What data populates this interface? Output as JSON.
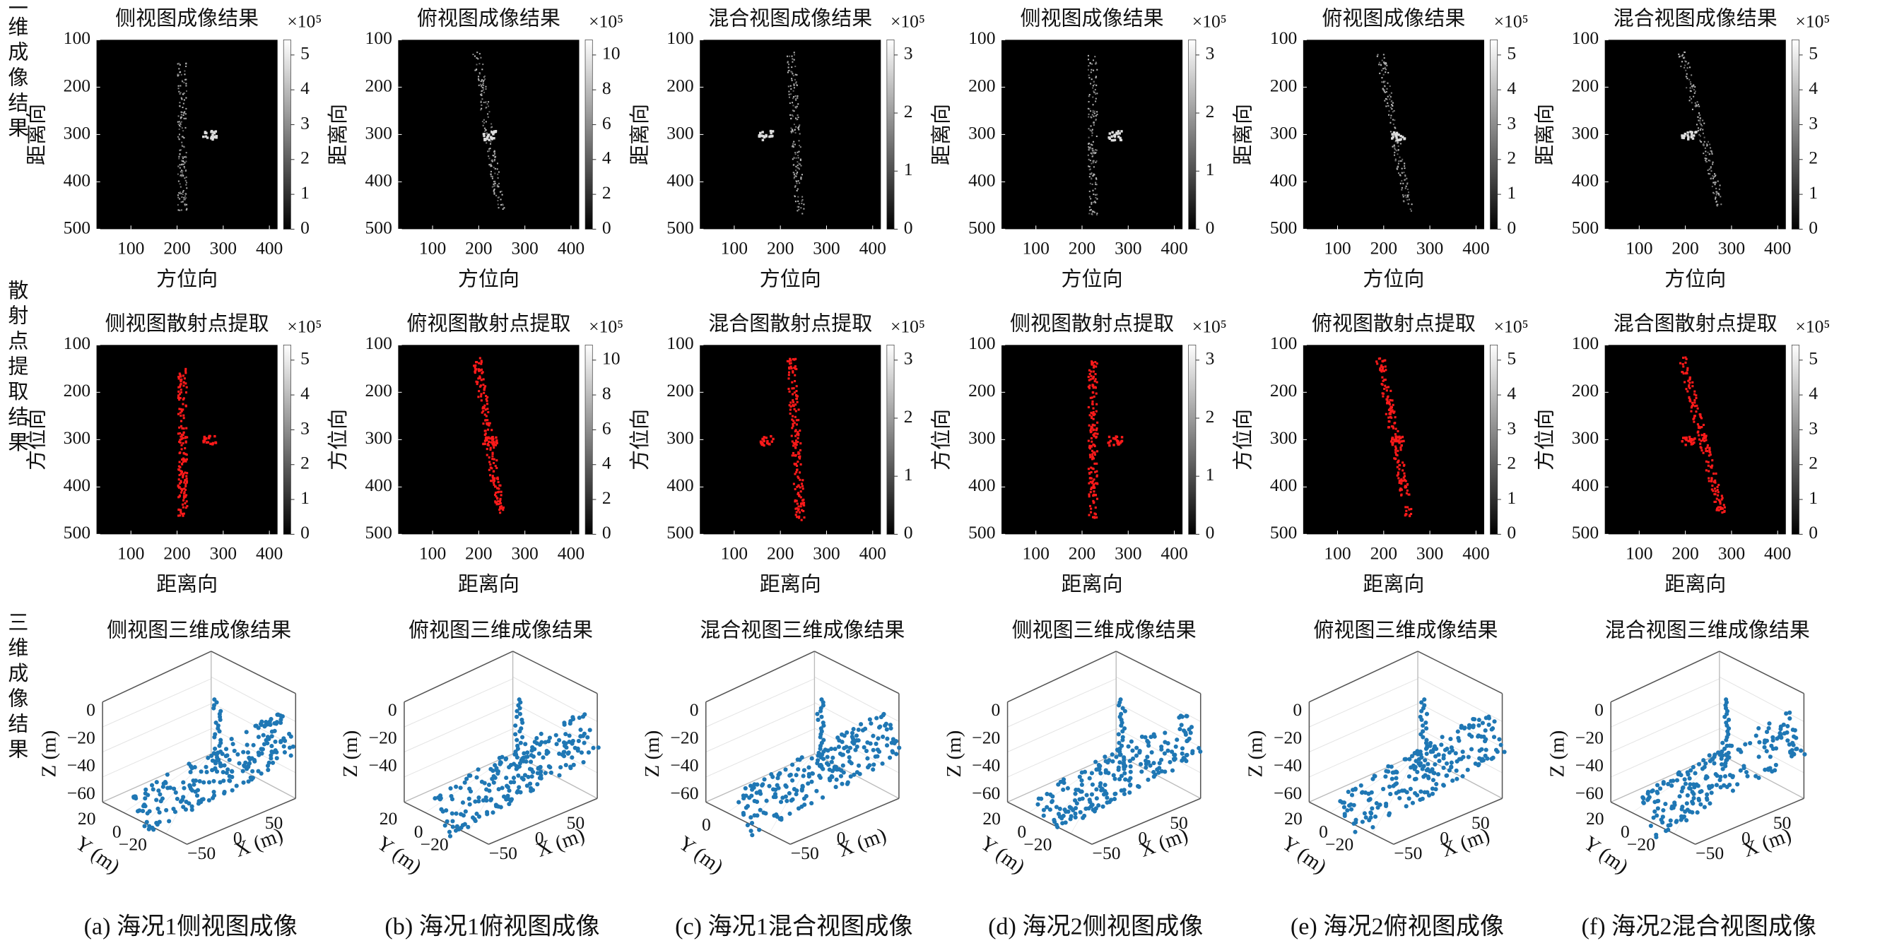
{
  "row_labels": [
    "二维成像结果",
    "散射点提取结果",
    "三维成像结果"
  ],
  "columns": [
    {
      "caption": "(a) 海况1侧视图成像",
      "image": {
        "title": "侧视图成像结果",
        "exponent": "×10⁵",
        "xlabel": "方位向",
        "ylabel": "距离向",
        "yticks": [
          "100",
          "200",
          "300",
          "400",
          "500"
        ],
        "xticks": [
          "100",
          "200",
          "300",
          "400"
        ],
        "cbar_ticks": [
          "0",
          "1",
          "2",
          "3",
          "4",
          "5"
        ]
      },
      "scatter": {
        "title": "侧视图散射点提取",
        "exponent": "×10⁵",
        "xlabel": "距离向",
        "ylabel": "方位向",
        "yticks": [
          "100",
          "200",
          "300",
          "400",
          "500"
        ],
        "xticks": [
          "100",
          "200",
          "300",
          "400"
        ],
        "cbar_ticks": [
          "0",
          "1",
          "2",
          "3",
          "4",
          "5"
        ]
      },
      "plot3d": {
        "title": "侧视图三维成像结果",
        "zlabel": "Z (m)",
        "ylabel": "Y (m)",
        "xlabel": "X (m)",
        "zticks": [
          "0",
          "−20",
          "−40",
          "−60"
        ],
        "yticks": [
          "20",
          "0",
          "−20"
        ],
        "xticks": [
          "−50",
          "0",
          "50"
        ]
      }
    },
    {
      "caption": "(b) 海况1俯视图成像",
      "image": {
        "title": "俯视图成像结果",
        "exponent": "×10⁵",
        "xlabel": "方位向",
        "ylabel": "距离向",
        "yticks": [
          "100",
          "200",
          "300",
          "400",
          "500"
        ],
        "xticks": [
          "100",
          "200",
          "300",
          "400"
        ],
        "cbar_ticks": [
          "0",
          "2",
          "4",
          "6",
          "8",
          "10"
        ]
      },
      "scatter": {
        "title": "俯视图散射点提取",
        "exponent": "×10⁵",
        "xlabel": "距离向",
        "ylabel": "方位向",
        "yticks": [
          "100",
          "200",
          "300",
          "400",
          "500"
        ],
        "xticks": [
          "100",
          "200",
          "300",
          "400"
        ],
        "cbar_ticks": [
          "0",
          "2",
          "4",
          "6",
          "8",
          "10"
        ]
      },
      "plot3d": {
        "title": "俯视图三维成像结果",
        "zlabel": "Z (m)",
        "ylabel": "Y (m)",
        "xlabel": "X (m)",
        "zticks": [
          "0",
          "−20",
          "−40"
        ],
        "yticks": [
          "20",
          "0",
          "−20"
        ],
        "xticks": [
          "−50",
          "0",
          "50"
        ]
      }
    },
    {
      "caption": "(c) 海况1混合视图成像",
      "image": {
        "title": "混合视图成像结果",
        "exponent": "×10⁵",
        "xlabel": "方位向",
        "ylabel": "距离向",
        "yticks": [
          "100",
          "200",
          "300",
          "400",
          "500"
        ],
        "xticks": [
          "100",
          "200",
          "300",
          "400"
        ],
        "cbar_ticks": [
          "0",
          "1",
          "2",
          "3"
        ]
      },
      "scatter": {
        "title": "混合图散射点提取",
        "exponent": "×10⁵",
        "xlabel": "距离向",
        "ylabel": "方位向",
        "yticks": [
          "100",
          "200",
          "300",
          "400",
          "500"
        ],
        "xticks": [
          "100",
          "200",
          "300",
          "400"
        ],
        "cbar_ticks": [
          "0",
          "1",
          "2",
          "3"
        ]
      },
      "plot3d": {
        "title": "混合视图三维成像结果",
        "zlabel": "Z (m)",
        "ylabel": "Y (m)",
        "xlabel": "X (m)",
        "zticks": [
          "0",
          "−20",
          "−40",
          "−60"
        ],
        "yticks": [
          "0"
        ],
        "xticks": [
          "−50",
          "0"
        ]
      }
    },
    {
      "caption": "(d) 海况2侧视图成像",
      "image": {
        "title": "侧视图成像结果",
        "exponent": "×10⁵",
        "xlabel": "方位向",
        "ylabel": "距离向",
        "yticks": [
          "100",
          "200",
          "300",
          "400",
          "500"
        ],
        "xticks": [
          "100",
          "200",
          "300",
          "400"
        ],
        "cbar_ticks": [
          "0",
          "1",
          "2",
          "3"
        ]
      },
      "scatter": {
        "title": "侧视图散射点提取",
        "exponent": "×10⁵",
        "xlabel": "距离向",
        "ylabel": "方位向",
        "yticks": [
          "100",
          "200",
          "300",
          "400",
          "500"
        ],
        "xticks": [
          "100",
          "200",
          "300",
          "400"
        ],
        "cbar_ticks": [
          "0",
          "1",
          "2",
          "3"
        ]
      },
      "plot3d": {
        "title": "侧视图三维成像结果",
        "zlabel": "Z (m)",
        "ylabel": "Y (m)",
        "xlabel": "X (m)",
        "zticks": [
          "0",
          "−20",
          "−40",
          "−60"
        ],
        "yticks": [
          "20",
          "0",
          "−20"
        ],
        "xticks": [
          "−50",
          "0",
          "50"
        ]
      }
    },
    {
      "caption": "(e) 海况2俯视图成像",
      "image": {
        "title": "俯视图成像结果",
        "exponent": "×10⁵",
        "xlabel": "方位向",
        "ylabel": "距离向",
        "yticks": [
          "100",
          "200",
          "300",
          "400",
          "500"
        ],
        "xticks": [
          "100",
          "200",
          "300",
          "400"
        ],
        "cbar_ticks": [
          "0",
          "1",
          "2",
          "3",
          "4",
          "5"
        ]
      },
      "scatter": {
        "title": "俯视图散射点提取",
        "exponent": "×10⁵",
        "xlabel": "距离向",
        "ylabel": "方位向",
        "yticks": [
          "100",
          "200",
          "300",
          "400",
          "500"
        ],
        "xticks": [
          "100",
          "200",
          "300",
          "400"
        ],
        "cbar_ticks": [
          "0",
          "1",
          "2",
          "3",
          "4",
          "5"
        ]
      },
      "plot3d": {
        "title": "俯视图三维成像结果",
        "zlabel": "Z (m)",
        "ylabel": "Y (m)",
        "xlabel": "X (m)",
        "zticks": [
          "0",
          "−20",
          "−40",
          "−60"
        ],
        "yticks": [
          "20",
          "0",
          "−20"
        ],
        "xticks": [
          "−50",
          "0",
          "50"
        ]
      }
    },
    {
      "caption": "(f) 海况2混合视图成像",
      "image": {
        "title": "混合视图成像结果",
        "exponent": "×10⁵",
        "xlabel": "方位向",
        "ylabel": "距离向",
        "yticks": [
          "100",
          "200",
          "300",
          "400",
          "500"
        ],
        "xticks": [
          "100",
          "200",
          "300",
          "400"
        ],
        "cbar_ticks": [
          "0",
          "1",
          "2",
          "3",
          "4",
          "5"
        ]
      },
      "scatter": {
        "title": "混合图散射点提取",
        "exponent": "×10⁵",
        "xlabel": "距离向",
        "ylabel": "方位向",
        "yticks": [
          "100",
          "200",
          "300",
          "400",
          "500"
        ],
        "xticks": [
          "100",
          "200",
          "300",
          "400"
        ],
        "cbar_ticks": [
          "0",
          "1",
          "2",
          "3",
          "4",
          "5"
        ]
      },
      "plot3d": {
        "title": "混合视图三维成像结果",
        "zlabel": "Z (m)",
        "ylabel": "Y (m)",
        "xlabel": "X (m)",
        "zticks": [
          "0",
          "−20",
          "−40",
          "−60"
        ],
        "yticks": [
          "20",
          "0",
          "−20"
        ],
        "xticks": [
          "−50",
          "0",
          "50"
        ]
      }
    }
  ]
}
